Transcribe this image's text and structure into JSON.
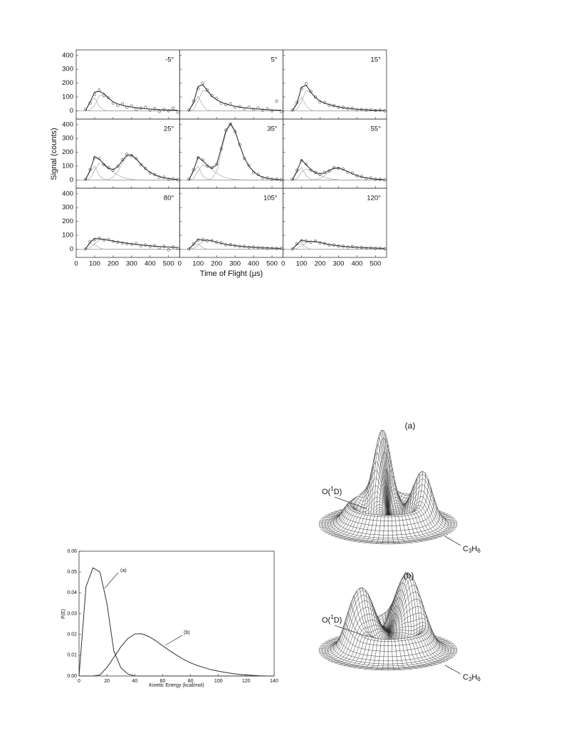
{
  "chart_data": [
    {
      "type": "multipanel",
      "x_label": "Time of Flight (μs)",
      "y_label": "Signal (counts)",
      "x": [
        50,
        75,
        100,
        125,
        150,
        175,
        200,
        225,
        250,
        275,
        300,
        325,
        350,
        375,
        400,
        425,
        450,
        475,
        500,
        525,
        550
      ],
      "xlim": [
        0,
        560
      ],
      "xticks": [
        0,
        100,
        200,
        300,
        400,
        500
      ],
      "ylim": [
        -60,
        440
      ],
      "yticks": [
        0,
        100,
        200,
        300,
        400
      ],
      "data_color": "#444444",
      "fit_color": "#222222",
      "component_color": "#999999",
      "panels": [
        {
          "label": "-5°",
          "data": [
            10,
            55,
            120,
            150,
            110,
            95,
            55,
            40,
            50,
            25,
            35,
            10,
            20,
            25,
            5,
            15,
            -5,
            10,
            0,
            20,
            -10
          ],
          "fit": [
            0,
            65,
            135,
            140,
            125,
            90,
            65,
            50,
            40,
            32,
            27,
            22,
            18,
            15,
            12,
            10,
            8,
            7,
            6,
            5,
            4
          ],
          "components": [
            [
              0,
              60,
              95,
              30,
              5,
              0,
              0,
              0,
              0,
              0,
              0,
              0,
              0,
              0,
              0,
              0,
              0,
              0,
              0,
              0,
              0
            ],
            [
              0,
              5,
              40,
              110,
              120,
              90,
              65,
              50,
              40,
              32,
              27,
              22,
              18,
              15,
              12,
              10,
              8,
              7,
              6,
              5,
              4
            ]
          ]
        },
        {
          "label": "5°",
          "data": [
            5,
            70,
            160,
            200,
            150,
            110,
            90,
            55,
            45,
            50,
            25,
            30,
            15,
            25,
            10,
            20,
            5,
            15,
            0,
            70,
            -5
          ],
          "fit": [
            0,
            60,
            175,
            190,
            145,
            105,
            80,
            62,
            50,
            40,
            33,
            27,
            22,
            18,
            15,
            12,
            10,
            8,
            6,
            5,
            4
          ],
          "components": [
            [
              0,
              50,
              105,
              40,
              5,
              0,
              0,
              0,
              0,
              0,
              0,
              0,
              0,
              0,
              0,
              0,
              0,
              0,
              0,
              0,
              0
            ],
            [
              0,
              10,
              70,
              150,
              140,
              105,
              80,
              62,
              50,
              40,
              33,
              27,
              22,
              18,
              15,
              12,
              10,
              8,
              6,
              5,
              4
            ]
          ]
        },
        {
          "label": "15°",
          "data": [
            5,
            60,
            160,
            195,
            140,
            100,
            65,
            60,
            40,
            38,
            25,
            25,
            15,
            18,
            8,
            10,
            5,
            8,
            2,
            5,
            0
          ],
          "fit": [
            0,
            55,
            170,
            185,
            135,
            95,
            70,
            55,
            45,
            35,
            28,
            22,
            18,
            14,
            11,
            9,
            7,
            5,
            4,
            3,
            2
          ],
          "components": [
            [
              0,
              45,
              100,
              35,
              5,
              0,
              0,
              0,
              0,
              0,
              0,
              0,
              0,
              0,
              0,
              0,
              0,
              0,
              0,
              0,
              0
            ],
            [
              0,
              10,
              70,
              150,
              130,
              95,
              70,
              55,
              45,
              35,
              28,
              22,
              18,
              14,
              11,
              9,
              7,
              5,
              4,
              3,
              2
            ]
          ]
        },
        {
          "label": "25°",
          "data": [
            5,
            75,
            160,
            155,
            110,
            90,
            70,
            100,
            145,
            185,
            175,
            155,
            110,
            85,
            50,
            40,
            20,
            20,
            5,
            10,
            0
          ],
          "fit": [
            0,
            70,
            170,
            150,
            115,
            85,
            75,
            95,
            140,
            180,
            180,
            152,
            115,
            80,
            55,
            38,
            25,
            16,
            10,
            6,
            4
          ],
          "components": [
            [
              0,
              60,
              100,
              30,
              5,
              0,
              0,
              0,
              0,
              0,
              0,
              0,
              0,
              0,
              0,
              0,
              0,
              0,
              0,
              0,
              0
            ],
            [
              0,
              10,
              70,
              120,
              110,
              80,
              55,
              35,
              20,
              10,
              5,
              2,
              0,
              0,
              0,
              0,
              0,
              0,
              0,
              0,
              0
            ],
            [
              0,
              0,
              0,
              0,
              0,
              5,
              20,
              60,
              120,
              170,
              175,
              150,
              115,
              80,
              55,
              38,
              25,
              16,
              10,
              6,
              4
            ]
          ]
        },
        {
          "label": "35°",
          "data": [
            5,
            75,
            160,
            145,
            100,
            90,
            115,
            225,
            360,
            405,
            350,
            255,
            155,
            105,
            55,
            40,
            15,
            15,
            5,
            5,
            0
          ],
          "fit": [
            0,
            70,
            165,
            140,
            105,
            85,
            110,
            230,
            355,
            408,
            354,
            252,
            160,
            100,
            60,
            35,
            20,
            12,
            7,
            4,
            2
          ],
          "components": [
            [
              0,
              60,
              100,
              30,
              5,
              0,
              0,
              0,
              0,
              0,
              0,
              0,
              0,
              0,
              0,
              0,
              0,
              0,
              0,
              0,
              0
            ],
            [
              0,
              10,
              65,
              110,
              100,
              75,
              50,
              30,
              15,
              8,
              4,
              2,
              0,
              0,
              0,
              0,
              0,
              0,
              0,
              0,
              0
            ],
            [
              0,
              0,
              0,
              0,
              0,
              10,
              60,
              200,
              340,
              400,
              350,
              250,
              160,
              100,
              60,
              35,
              20,
              12,
              7,
              4,
              2
            ]
          ]
        },
        {
          "label": "55°",
          "data": [
            5,
            70,
            140,
            115,
            70,
            55,
            40,
            55,
            65,
            90,
            85,
            80,
            55,
            50,
            30,
            25,
            10,
            15,
            5,
            5,
            0
          ],
          "fit": [
            0,
            65,
            145,
            110,
            75,
            53,
            45,
            50,
            70,
            85,
            87,
            75,
            60,
            45,
            32,
            22,
            15,
            10,
            6,
            4,
            2
          ],
          "components": [
            [
              0,
              55,
              90,
              30,
              5,
              0,
              0,
              0,
              0,
              0,
              0,
              0,
              0,
              0,
              0,
              0,
              0,
              0,
              0,
              0,
              0
            ],
            [
              0,
              10,
              55,
              80,
              70,
              50,
              35,
              20,
              10,
              5,
              2,
              0,
              0,
              0,
              0,
              0,
              0,
              0,
              0,
              0,
              0
            ],
            [
              0,
              0,
              0,
              0,
              0,
              3,
              10,
              30,
              60,
              80,
              85,
              75,
              60,
              45,
              32,
              22,
              15,
              10,
              6,
              4,
              2
            ]
          ]
        },
        {
          "label": "80°",
          "data": [
            0,
            55,
            70,
            80,
            65,
            70,
            55,
            50,
            45,
            40,
            35,
            40,
            25,
            30,
            20,
            25,
            10,
            20,
            -5,
            15,
            5
          ],
          "fit": [
            0,
            50,
            75,
            75,
            70,
            65,
            58,
            52,
            47,
            42,
            38,
            34,
            30,
            27,
            24,
            21,
            19,
            17,
            15,
            13,
            11
          ],
          "components": [
            [
              0,
              40,
              35,
              10,
              0,
              0,
              0,
              0,
              0,
              0,
              0,
              0,
              0,
              0,
              0,
              0,
              0,
              0,
              0,
              0,
              0
            ],
            [
              0,
              10,
              40,
              65,
              70,
              65,
              58,
              52,
              47,
              42,
              38,
              34,
              30,
              27,
              24,
              21,
              19,
              17,
              15,
              13,
              11
            ]
          ]
        },
        {
          "label": "105°",
          "data": [
            0,
            40,
            65,
            70,
            60,
            62,
            50,
            45,
            30,
            32,
            25,
            20,
            20,
            12,
            15,
            10,
            10,
            5,
            8,
            5,
            5
          ],
          "fit": [
            0,
            35,
            70,
            65,
            65,
            60,
            50,
            42,
            35,
            30,
            25,
            21,
            18,
            15,
            13,
            11,
            9,
            8,
            7,
            6,
            5
          ],
          "components": [
            [
              0,
              30,
              40,
              10,
              0,
              0,
              0,
              0,
              0,
              0,
              0,
              0,
              0,
              0,
              0,
              0,
              0,
              0,
              0,
              0,
              0
            ],
            [
              0,
              5,
              30,
              55,
              65,
              60,
              50,
              42,
              35,
              30,
              25,
              21,
              18,
              15,
              13,
              11,
              9,
              8,
              7,
              6,
              5
            ]
          ]
        },
        {
          "label": "120°",
          "data": [
            0,
            40,
            60,
            60,
            50,
            58,
            45,
            42,
            30,
            30,
            22,
            20,
            15,
            18,
            10,
            12,
            8,
            10,
            5,
            8,
            3
          ],
          "fit": [
            0,
            35,
            65,
            57,
            55,
            55,
            48,
            40,
            33,
            28,
            24,
            20,
            17,
            15,
            13,
            11,
            9,
            8,
            7,
            6,
            5
          ],
          "components": [
            [
              0,
              30,
              40,
              12,
              0,
              0,
              0,
              0,
              0,
              0,
              0,
              0,
              0,
              0,
              0,
              0,
              0,
              0,
              0,
              0,
              0
            ],
            [
              0,
              5,
              25,
              45,
              55,
              55,
              48,
              40,
              33,
              28,
              24,
              20,
              17,
              15,
              13,
              11,
              9,
              8,
              7,
              6,
              5
            ]
          ]
        }
      ]
    },
    {
      "type": "line",
      "x_label": "Kinetic Energy (kcal/mol)",
      "y_label": "P(E)",
      "x": [
        0,
        5,
        10,
        15,
        20,
        25,
        30,
        35,
        40,
        45,
        50,
        55,
        60,
        65,
        70,
        75,
        80,
        85,
        90,
        95,
        100,
        105,
        110,
        115,
        120,
        125,
        130,
        135,
        140
      ],
      "xlim": [
        0,
        140
      ],
      "xticks": [
        0,
        20,
        40,
        60,
        80,
        100,
        120,
        140
      ],
      "ylim": [
        0,
        0.06
      ],
      "yticks": [
        {
          "value": 0,
          "label": "0.00"
        },
        {
          "value": 0.01,
          "label": "0.01"
        },
        {
          "value": 0.02,
          "label": "0.02"
        },
        {
          "value": 0.03,
          "label": "0.03"
        },
        {
          "value": 0.04,
          "label": "0.04"
        },
        {
          "value": 0.05,
          "label": "0.05"
        },
        {
          "value": 0.06,
          "label": "0.06"
        }
      ],
      "series": [
        {
          "color": "#333333",
          "values": [
            0,
            0.043,
            0.052,
            0.05,
            0.035,
            0.012,
            0.004,
            0.001,
            0,
            0,
            0,
            0,
            0,
            0,
            0,
            0,
            0,
            0,
            0,
            0,
            0,
            0,
            0,
            0,
            0,
            0,
            0,
            0,
            0
          ]
        },
        {
          "color": "#333333",
          "values": [
            0,
            0,
            0,
            0.0005,
            0.004,
            0.009,
            0.014,
            0.018,
            0.0202,
            0.0203,
            0.019,
            0.017,
            0.0145,
            0.0122,
            0.01,
            0.008,
            0.0063,
            0.005,
            0.004,
            0.003,
            0.0023,
            0.0017,
            0.0012,
            0.0008,
            0.0005,
            0.0003,
            0.0001,
            0,
            0
          ]
        }
      ],
      "annotations": [
        "(a)",
        "(b)"
      ]
    }
  ],
  "surfaces": [
    {
      "label": "(a)",
      "reactant_1": [
        "O(",
        "1",
        "D)"
      ],
      "reactant_2": [
        "C",
        "3",
        "H",
        "6"
      ]
    },
    {
      "label": "(b)",
      "reactant_1": [
        "O(",
        "1",
        "D)"
      ],
      "reactant_2": [
        "C",
        "3",
        "H",
        "6"
      ]
    }
  ]
}
